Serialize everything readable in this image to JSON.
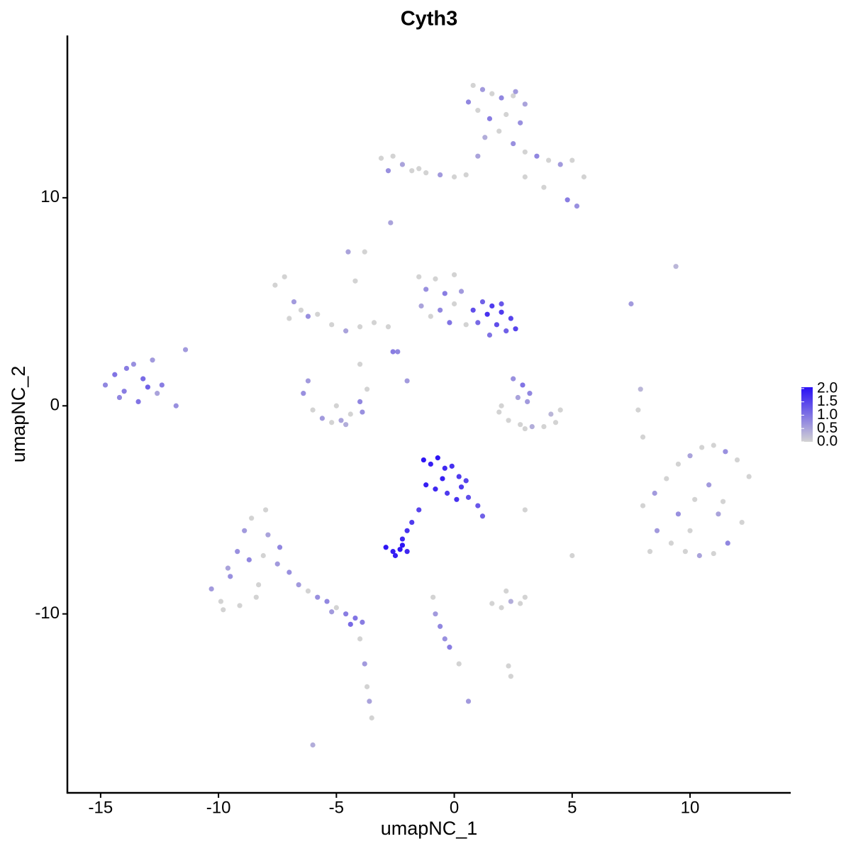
{
  "chart_data": {
    "type": "scatter",
    "title": "Cyth3",
    "x_label": "umapNC_1",
    "y_label": "umapNC_2",
    "xlim": [
      -16.41,
      14.27
    ],
    "ylim": [
      -18.6,
      17.8
    ],
    "xticks": [
      -15,
      -10,
      -5,
      0,
      5,
      10
    ],
    "yticks": [
      -10,
      0,
      10
    ],
    "colors": [
      "#d3d3d3",
      "#2a10f5"
    ],
    "clim": [
      0,
      2.05
    ],
    "cticks": [
      {
        "value": 0,
        "label": "0.0"
      },
      {
        "value": 0.5,
        "label": "0.5"
      },
      {
        "value": 1,
        "label": "1.0"
      },
      {
        "value": 1.5,
        "label": "1.5"
      },
      {
        "value": 2,
        "label": "2.0"
      }
    ],
    "x": [
      0.8,
      1.2,
      1.6,
      2.0,
      2.5,
      3.0,
      1.0,
      1.5,
      2.2,
      2.8,
      0.6,
      1.9,
      2.6,
      1.3,
      -3.1,
      -2.6,
      -2.2,
      -1.8,
      -1.2,
      -0.6,
      0,
      0.5,
      -2.8,
      -1.5,
      1.0,
      2.5,
      3.0,
      3.5,
      4.0,
      4.5,
      5.0,
      5.5,
      3.0,
      4.8,
      5.2,
      3.8,
      -2.7,
      9.4,
      7.5,
      -4.5,
      -14.8,
      -14.4,
      -14.0,
      -13.6,
      -13.2,
      -12.8,
      -12.4,
      -14.2,
      -13.4,
      -12.6,
      -13.9,
      -13.0,
      -11.8,
      -11.4,
      -7.6,
      -7.2,
      -6.8,
      -6.5,
      -7.0,
      -6.2,
      -5.8,
      -5.2,
      -4.6,
      -4.0,
      -4.2,
      -3.8,
      -3.4,
      -2.8,
      -2.4,
      -2.0,
      -4.0,
      -2.6,
      -6.4,
      -6.0,
      -5.6,
      -5.2,
      -4.8,
      -4.4,
      -4.0,
      -3.7,
      -6.2,
      -5.0,
      -3.9,
      -4.6,
      -1.5,
      -1.2,
      -0.8,
      -0.4,
      0,
      0.3,
      -1.0,
      -0.6,
      -0.2,
      0.5,
      -1.4,
      0.0,
      0.8,
      1.2,
      1.6,
      2.0,
      2.4,
      1.0,
      1.4,
      1.8,
      2.2,
      2.6,
      1.5,
      2.0,
      2.5,
      2.9,
      3.2,
      3.1,
      2.7,
      1.9,
      2.3,
      2.8,
      3.3,
      3.8,
      4.3,
      4.5,
      4.1,
      3.0,
      2.0,
      8.0,
      8.5,
      9.0,
      9.5,
      10.0,
      10.5,
      11.0,
      11.5,
      12.0,
      12.5,
      8.6,
      9.2,
      9.8,
      10.4,
      11.0,
      11.6,
      12.2,
      9.5,
      10.2,
      10.8,
      11.4,
      10.0,
      11.2,
      8.3,
      8.0,
      7.9,
      7.8,
      -1.3,
      -1.0,
      -0.7,
      -0.4,
      -0.1,
      0.2,
      0.5,
      -1.2,
      -0.8,
      -0.3,
      0.1,
      0.6,
      1.0,
      1.2,
      -0.5,
      0.3,
      -1.5,
      -1.8,
      -2.0,
      -2.2,
      -2.9,
      -2.6,
      -2.3,
      -2.0,
      -2.5,
      -2.2,
      -10.3,
      -9.9,
      -9.5,
      -9.1,
      -8.7,
      -8.3,
      -7.9,
      -7.5,
      -9.8,
      -9.2,
      -8.6,
      -8.0,
      -7.4,
      -8.9,
      -8.4,
      -9.6,
      -7.0,
      -8.1,
      -6.6,
      -6.2,
      -5.8,
      -5.4,
      -5.0,
      -4.6,
      -4.2,
      -3.9,
      -5.2,
      -4.4,
      -4.0,
      -3.8,
      -3.7,
      -3.6,
      -3.5,
      -6.0,
      1.6,
      2.0,
      2.4,
      2.8,
      3.0,
      2.2,
      -0.9,
      -0.8,
      -0.6,
      -0.4,
      -0.2,
      0.2,
      2.3,
      2.4,
      0.6,
      5.0,
      3.0
    ],
    "y": [
      15.4,
      15.2,
      15.0,
      14.8,
      14.9,
      14.5,
      14.2,
      13.8,
      14.0,
      13.6,
      14.6,
      13.2,
      15.1,
      12.9,
      11.9,
      12.0,
      11.6,
      11.3,
      11.2,
      11.1,
      11.0,
      11.1,
      11.3,
      11.4,
      12.0,
      12.6,
      12.2,
      12.0,
      11.8,
      11.6,
      11.8,
      11.0,
      11.0,
      9.9,
      9.6,
      10.5,
      8.8,
      6.7,
      4.9,
      7.4,
      1.0,
      1.5,
      0.7,
      2.0,
      1.3,
      2.2,
      1.0,
      0.4,
      0.2,
      0.6,
      1.8,
      0.9,
      0.0,
      2.7,
      5.8,
      6.2,
      5.0,
      4.6,
      4.2,
      4.3,
      4.4,
      3.9,
      3.6,
      3.8,
      6.0,
      7.4,
      4.0,
      3.8,
      2.6,
      1.2,
      2.0,
      2.6,
      0.6,
      -0.2,
      -0.6,
      -0.8,
      -0.7,
      -0.4,
      0.2,
      0.8,
      1.2,
      0.0,
      -0.3,
      -0.9,
      6.2,
      5.6,
      6.1,
      5.4,
      4.9,
      5.5,
      4.3,
      4.6,
      4.0,
      3.9,
      4.8,
      6.3,
      4.6,
      5.0,
      4.8,
      4.9,
      4.2,
      4.0,
      4.4,
      3.9,
      3.6,
      3.7,
      3.4,
      4.5,
      1.3,
      1.0,
      0.6,
      0.2,
      0.4,
      -0.3,
      -0.7,
      -0.9,
      -1.0,
      -1.0,
      -0.8,
      -0.2,
      -0.4,
      -1.1,
      0.0,
      -4.8,
      -4.2,
      -3.5,
      -2.8,
      -2.4,
      -2.0,
      -1.9,
      -2.2,
      -2.6,
      -3.4,
      -6.0,
      -6.6,
      -7.0,
      -7.2,
      -7.1,
      -6.6,
      -5.6,
      -5.2,
      -4.5,
      -3.8,
      -4.6,
      -6.0,
      -5.2,
      -7.0,
      -1.5,
      0.8,
      -0.2,
      -2.6,
      -2.8,
      -2.5,
      -3.0,
      -2.9,
      -3.4,
      -3.6,
      -3.8,
      -4.0,
      -4.2,
      -4.5,
      -4.4,
      -4.8,
      -5.3,
      -3.5,
      -3.9,
      -5.0,
      -5.6,
      -6.0,
      -6.4,
      -6.8,
      -7.0,
      -6.9,
      -7.0,
      -7.2,
      -6.7,
      -8.8,
      -9.4,
      -8.2,
      -9.6,
      -7.4,
      -8.6,
      -6.2,
      -7.6,
      -9.8,
      -7.0,
      -5.4,
      -5.0,
      -6.8,
      -6.0,
      -9.2,
      -7.8,
      -8.0,
      -7.2,
      -8.6,
      -8.9,
      -9.2,
      -9.4,
      -9.7,
      -10.0,
      -10.2,
      -10.4,
      -9.9,
      -10.5,
      -11.2,
      -12.4,
      -13.5,
      -14.2,
      -15.0,
      -16.3,
      -9.5,
      -9.7,
      -9.4,
      -9.5,
      -9.2,
      -8.9,
      -9.2,
      -10.0,
      -10.6,
      -11.2,
      -11.6,
      -12.4,
      -12.5,
      -13.0,
      -14.2,
      -7.2,
      -5.0
    ],
    "color_values": [
      0,
      0.6,
      0,
      0.8,
      0,
      0.5,
      0,
      0.9,
      0,
      0.7,
      0.8,
      0,
      0.6,
      0.4,
      0,
      0,
      0.5,
      0,
      0,
      0.6,
      0,
      0,
      0.7,
      0,
      0.5,
      0.7,
      0,
      0.8,
      0,
      0.6,
      0,
      0,
      0,
      0.9,
      0.7,
      0,
      0.5,
      0.3,
      0.6,
      0.5,
      0.8,
      1.0,
      0.9,
      0.7,
      1.1,
      0.6,
      0.9,
      0.8,
      1.0,
      0.5,
      0.9,
      1.2,
      0.7,
      0.6,
      0,
      0,
      0.6,
      0,
      0,
      0.7,
      0,
      0,
      0.5,
      0,
      0,
      0,
      0,
      0,
      0.8,
      0.6,
      0,
      0.9,
      0.7,
      0,
      0.6,
      0,
      0.5,
      0,
      0.8,
      0,
      0.6,
      0,
      0.7,
      0.4,
      0,
      0.7,
      0,
      0.9,
      0,
      0.6,
      0,
      0.8,
      1.0,
      0,
      0.5,
      0,
      1.4,
      1.2,
      1.6,
      1.3,
      1.5,
      1.1,
      1.7,
      1.4,
      1.2,
      1.5,
      1.0,
      1.6,
      0.7,
      1.0,
      0.8,
      0.6,
      0.5,
      0,
      0,
      0,
      0.4,
      0,
      0,
      0,
      0.3,
      0,
      0,
      0,
      0.6,
      0,
      0,
      0.5,
      0,
      0,
      0.7,
      0,
      0,
      0.6,
      0,
      0,
      0.5,
      0,
      0.8,
      0,
      0.7,
      0,
      0.6,
      0,
      0,
      0.5,
      0,
      0,
      0.3,
      0,
      2.0,
      1.9,
      2.0,
      1.8,
      1.7,
      1.6,
      1.5,
      1.9,
      1.8,
      1.6,
      1.7,
      1.4,
      1.3,
      1.2,
      1.9,
      1.6,
      1.5,
      1.6,
      1.7,
      1.8,
      2.0,
      1.9,
      2.0,
      1.8,
      1.9,
      2.0,
      0.6,
      0,
      0.7,
      0,
      0.8,
      0,
      0.5,
      0.6,
      0,
      0.7,
      0,
      0,
      0.8,
      0.6,
      0,
      0.5,
      0.7,
      0,
      0.6,
      0,
      0.7,
      0.8,
      0,
      0.9,
      1.0,
      0.9,
      0.6,
      1.1,
      0,
      0.6,
      0,
      0.5,
      0,
      0.4,
      0,
      0,
      0.4,
      0,
      0,
      0,
      0,
      0.6,
      0.8,
      0.7,
      0.9,
      0,
      0,
      0,
      0.6,
      0,
      0
    ]
  }
}
